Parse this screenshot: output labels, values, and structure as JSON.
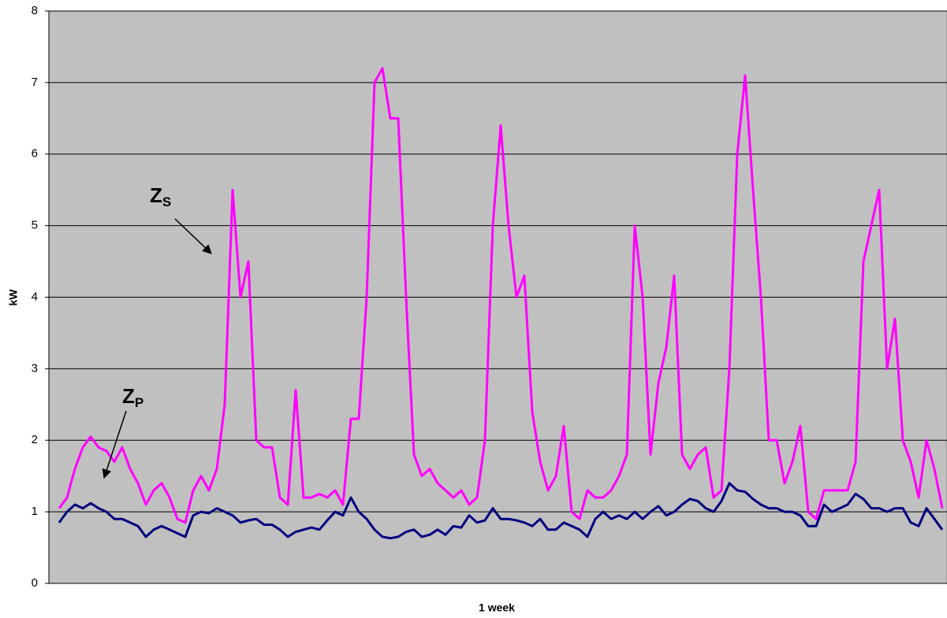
{
  "chart_data": {
    "type": "line",
    "x_label": "1 week",
    "y_label": "kW",
    "ylim": [
      0,
      8
    ],
    "yticks": [
      0,
      1,
      2,
      3,
      4,
      5,
      6,
      7,
      8
    ],
    "grid": true,
    "background": "#c0c0c0",
    "series": [
      {
        "color": "#ff00ff",
        "values": [
          1.05,
          1.2,
          1.6,
          1.9,
          2.05,
          1.9,
          1.85,
          1.7,
          1.9,
          1.6,
          1.4,
          1.1,
          1.3,
          1.4,
          1.2,
          0.9,
          0.85,
          1.3,
          1.5,
          1.3,
          1.6,
          2.5,
          5.5,
          4.0,
          4.5,
          2.0,
          1.9,
          1.9,
          1.2,
          1.1,
          2.7,
          1.2,
          1.2,
          1.25,
          1.2,
          1.3,
          1.1,
          2.3,
          2.3,
          4.0,
          7.0,
          7.2,
          6.5,
          6.5,
          4.0,
          1.8,
          1.5,
          1.6,
          1.4,
          1.3,
          1.2,
          1.3,
          1.1,
          1.2,
          2.0,
          5.0,
          6.4,
          5.0,
          4.0,
          4.3,
          2.4,
          1.7,
          1.3,
          1.5,
          2.2,
          1.0,
          0.9,
          1.3,
          1.2,
          1.2,
          1.3,
          1.5,
          1.8,
          5.0,
          4.0,
          1.8,
          2.8,
          3.3,
          4.3,
          1.8,
          1.6,
          1.8,
          1.9,
          1.2,
          1.3,
          3.0,
          6.0,
          7.1,
          5.5,
          4.0,
          2.0,
          2.0,
          1.4,
          1.7,
          2.2,
          1.0,
          0.9,
          1.3,
          1.3,
          1.3,
          1.3,
          1.7,
          4.5,
          5.0,
          5.5,
          3.0,
          3.7,
          2.0,
          1.7,
          1.2,
          2.0,
          1.6,
          1.05
        ]
      },
      {
        "color": "#000080",
        "values": [
          0.85,
          1.0,
          1.1,
          1.05,
          1.12,
          1.05,
          1.0,
          0.9,
          0.9,
          0.85,
          0.8,
          0.65,
          0.75,
          0.8,
          0.75,
          0.7,
          0.65,
          0.95,
          1.0,
          0.98,
          1.05,
          1.0,
          0.95,
          0.85,
          0.88,
          0.9,
          0.82,
          0.82,
          0.75,
          0.65,
          0.72,
          0.75,
          0.78,
          0.75,
          0.88,
          1.0,
          0.95,
          1.2,
          1.0,
          0.9,
          0.75,
          0.65,
          0.63,
          0.65,
          0.72,
          0.75,
          0.65,
          0.68,
          0.75,
          0.68,
          0.8,
          0.78,
          0.95,
          0.85,
          0.88,
          1.05,
          0.9,
          0.9,
          0.88,
          0.85,
          0.8,
          0.9,
          0.75,
          0.75,
          0.85,
          0.8,
          0.75,
          0.65,
          0.9,
          1.0,
          0.9,
          0.95,
          0.9,
          1.0,
          0.9,
          1.0,
          1.08,
          0.95,
          1.0,
          1.1,
          1.18,
          1.15,
          1.05,
          1.0,
          1.15,
          1.4,
          1.3,
          1.28,
          1.18,
          1.1,
          1.05,
          1.05,
          1.0,
          1.0,
          0.95,
          0.8,
          0.8,
          1.1,
          1.0,
          1.05,
          1.1,
          1.25,
          1.18,
          1.05,
          1.05,
          1.0,
          1.05,
          1.05,
          0.85,
          0.8,
          1.05,
          0.9,
          0.75
        ]
      }
    ],
    "annotations": [
      {
        "text": "Z",
        "subscript": "S"
      },
      {
        "text": "Z",
        "subscript": "P"
      }
    ]
  }
}
